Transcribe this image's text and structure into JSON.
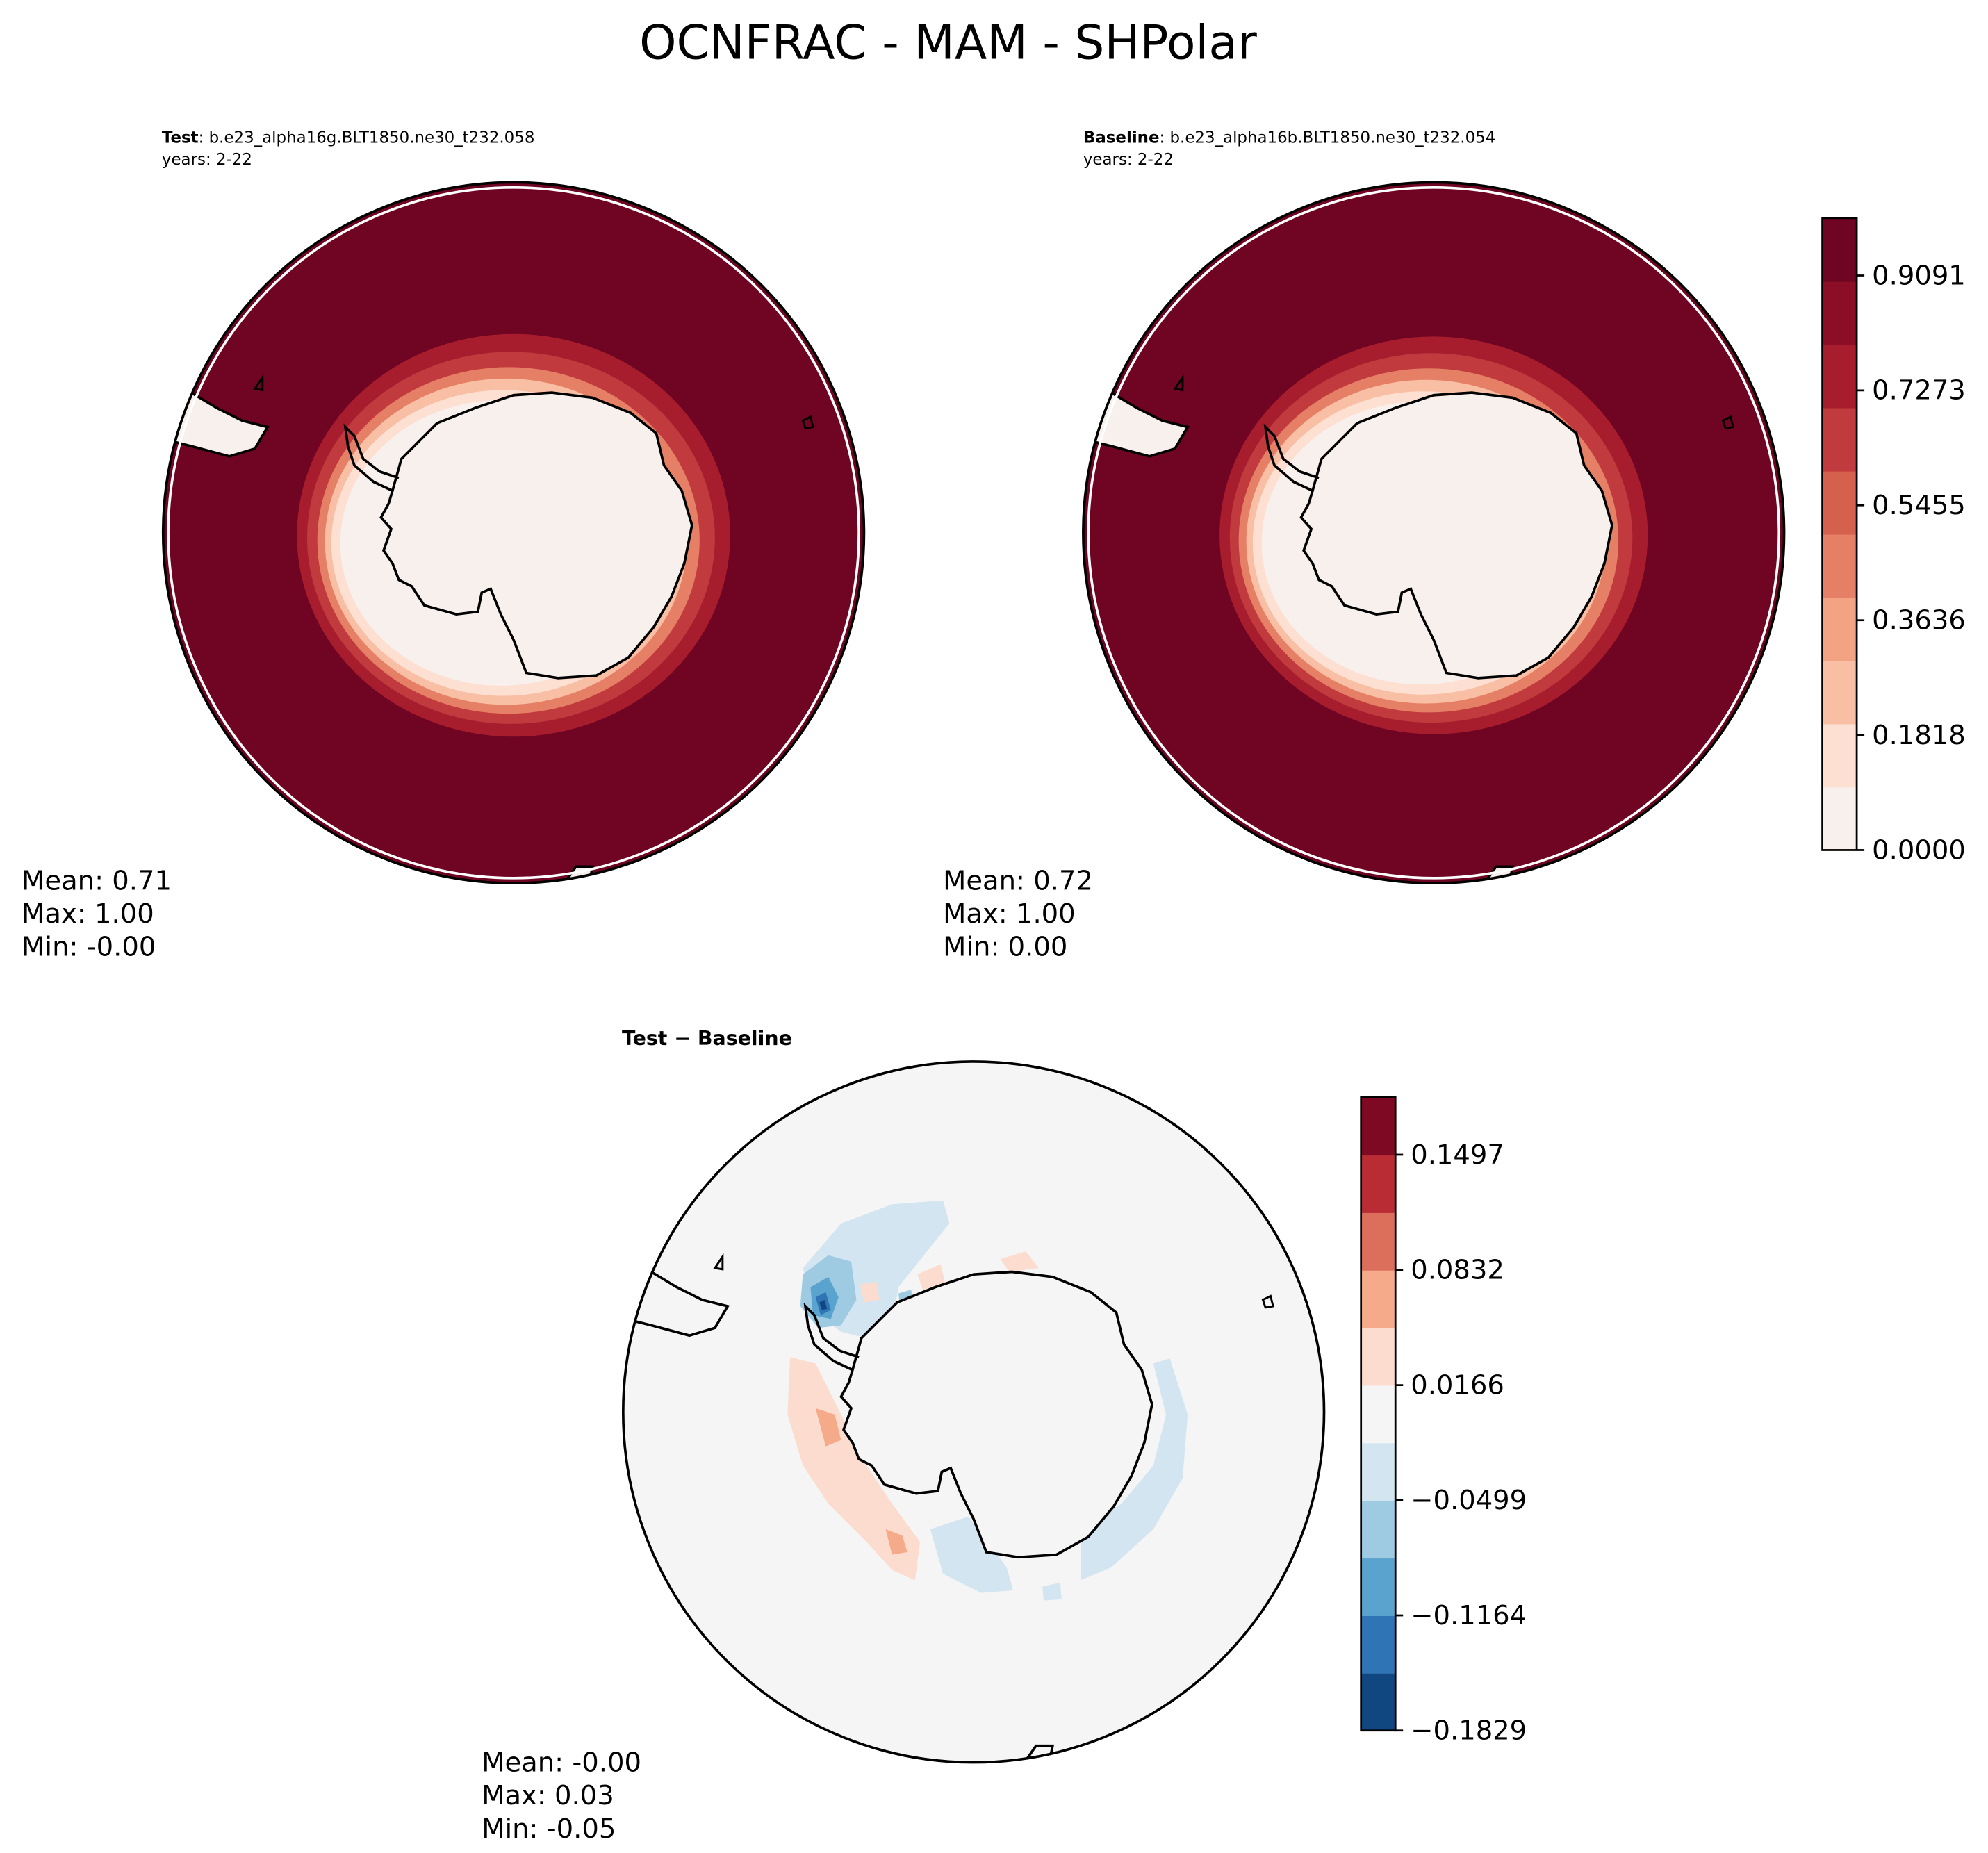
{
  "title": "OCNFRAC - MAM - SHPolar",
  "panels": [
    {
      "id": "test",
      "label_bold": "Test",
      "label_rest": ": b.e23_alpha16g.BLT1850.ne30_t232.058",
      "years": "years: 2-22",
      "stats": [
        "Mean:  0.71",
        "Max:  1.00",
        "Min: -0.00"
      ]
    },
    {
      "id": "baseline",
      "label_bold": "Baseline",
      "label_rest": ": b.e23_alpha16b.BLT1850.ne30_t232.054",
      "years": "years: 2-22",
      "stats": [
        "Mean:  0.72",
        "Max:  1.00",
        "Min:  0.00"
      ]
    },
    {
      "id": "diff",
      "label_bold": "Test − Baseline",
      "label_rest": "",
      "years": "",
      "stats": [
        "Mean: -0.00",
        "Max:  0.03",
        "Min: -0.05"
      ]
    }
  ],
  "colorbars": {
    "top": {
      "ticks": [
        "0.0000",
        "0.1818",
        "0.3636",
        "0.5455",
        "0.7273",
        "0.9091"
      ],
      "tick_values": [
        0.0,
        0.1818,
        0.3636,
        0.5455,
        0.7273,
        0.9091
      ],
      "range": [
        0.0,
        1.0
      ],
      "colors": [
        "#f7f0ec",
        "#fde0d2",
        "#f8bfa4",
        "#f3a383",
        "#e57f65",
        "#d4604d",
        "#c13a3d",
        "#a81d2e",
        "#8b0e26",
        "#6f0522"
      ]
    },
    "bottom": {
      "ticks": [
        "−0.1829",
        "−0.1164",
        "−0.0499",
        "0.0166",
        "0.0832",
        "0.1497"
      ],
      "tick_values": [
        -0.1829,
        -0.1164,
        -0.0499,
        0.0166,
        0.0832,
        0.1497
      ],
      "range": [
        -0.1829,
        0.1829
      ],
      "colors": [
        "#114781",
        "#2f74b5",
        "#5ba3cf",
        "#9ecbe2",
        "#d3e5f1",
        "#f5f5f5",
        "#fbdcce",
        "#f5ab8a",
        "#dc6f5c",
        "#b92c34",
        "#7d0a22"
      ]
    }
  },
  "chart_data": {
    "type": "heatmap",
    "title": "OCNFRAC - MAM - SHPolar",
    "projection": "South polar stereographic",
    "panels": [
      {
        "name": "Test",
        "mean": 0.71,
        "max": 1.0,
        "min": -0.0,
        "colormap": "RdBu_r",
        "range": [
          0.0,
          1.0
        ]
      },
      {
        "name": "Baseline",
        "mean": 0.72,
        "max": 1.0,
        "min": 0.0,
        "colormap": "RdBu_r",
        "range": [
          0.0,
          1.0
        ]
      },
      {
        "name": "Test − Baseline",
        "mean": -0.0,
        "max": 0.03,
        "min": -0.05,
        "colormap": "RdBu_r",
        "range": [
          -0.1829,
          0.1829
        ]
      }
    ],
    "colorbar_top_ticks": [
      0.0,
      0.1818,
      0.3636,
      0.5455,
      0.7273,
      0.9091
    ],
    "colorbar_bottom_ticks": [
      -0.1829,
      -0.1164,
      -0.0499,
      0.0166,
      0.0832,
      0.1497
    ]
  }
}
